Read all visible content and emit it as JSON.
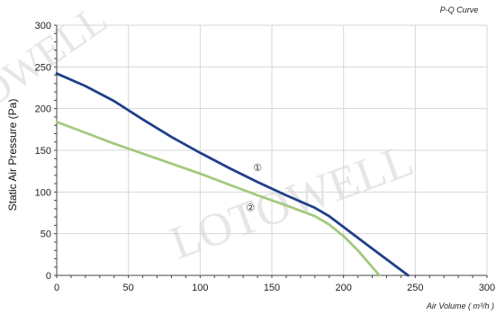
{
  "chart_data": {
    "type": "line",
    "title": "P-Q Curve",
    "xlabel": "Air Volume ( m³/h )",
    "ylabel": "Static Air Pressure  (Pa)",
    "xlim": [
      0,
      300
    ],
    "ylim": [
      0,
      300
    ],
    "xticks": [
      "0",
      "50",
      "100",
      "150",
      "200",
      "250",
      "300"
    ],
    "yticks": [
      "0",
      "50",
      "100",
      "150",
      "200",
      "250",
      "300"
    ],
    "grid": true,
    "series": [
      {
        "name": "①",
        "color": "#1f3f8a",
        "x": [
          0,
          20,
          40,
          60,
          80,
          100,
          120,
          140,
          160,
          180,
          190,
          200,
          220,
          245
        ],
        "y": [
          242,
          227,
          209,
          187,
          166,
          147,
          129,
          112,
          96,
          81,
          71,
          58,
          32,
          0
        ]
      },
      {
        "name": "②",
        "color": "#a4c97f",
        "x": [
          0,
          20,
          40,
          60,
          80,
          100,
          120,
          140,
          160,
          180,
          190,
          200,
          210,
          218,
          225
        ],
        "y": [
          184,
          171,
          158,
          146,
          134,
          122,
          109,
          96,
          84,
          71,
          61,
          47,
          30,
          14,
          0
        ]
      }
    ],
    "watermark": "LOTOWELL"
  }
}
